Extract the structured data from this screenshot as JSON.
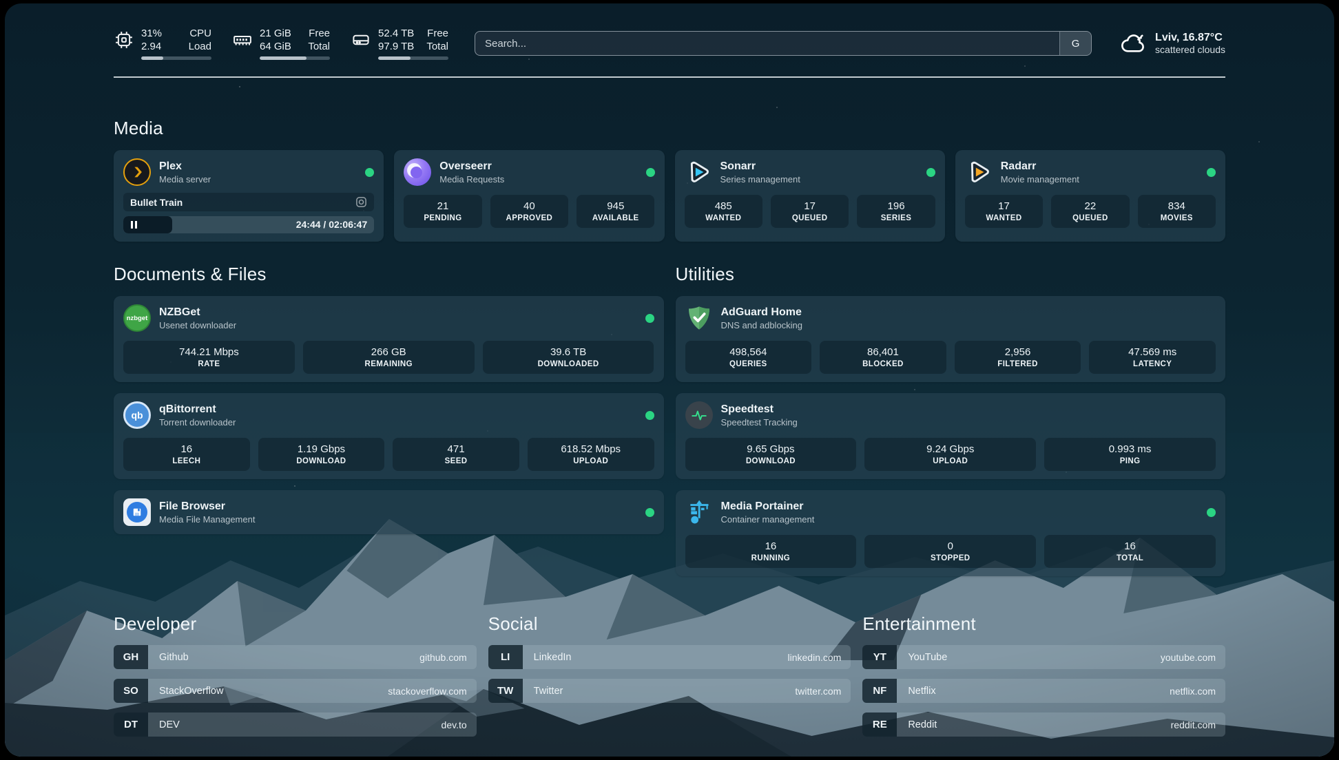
{
  "colors": {
    "status_online": "#2bd483",
    "plex_accent": "#e5a00d",
    "sonarr_accent": "#35c5f4",
    "radarr_accent": "#f5a623"
  },
  "header": {
    "stats": [
      {
        "kind": "cpu",
        "value_top": "31%",
        "value_bottom": "2.94",
        "label_top": "CPU",
        "label_bottom": "Load",
        "progress_pct": 31
      },
      {
        "kind": "memory",
        "value_top": "21 GiB",
        "value_bottom": "64 GiB",
        "label_top": "Free",
        "label_bottom": "Total",
        "progress_pct": 67
      },
      {
        "kind": "disk",
        "value_top": "52.4 TB",
        "value_bottom": "97.9 TB",
        "label_top": "Free",
        "label_bottom": "Total",
        "progress_pct": 46
      }
    ],
    "search_placeholder": "Search...",
    "search_engine": "G",
    "weather": {
      "location_temp": "Lviv, 16.87°C",
      "condition": "scattered clouds"
    }
  },
  "media": {
    "title": "Media",
    "plex": {
      "name": "Plex",
      "description": "Media server",
      "now_playing": "Bullet Train",
      "time_display": "24:44 / 02:06:47",
      "progress_pct": 19.5
    },
    "overseerr": {
      "name": "Overseerr",
      "description": "Media Requests",
      "stats": [
        {
          "value": "21",
          "label": "PENDING"
        },
        {
          "value": "40",
          "label": "APPROVED"
        },
        {
          "value": "945",
          "label": "AVAILABLE"
        }
      ]
    },
    "sonarr": {
      "name": "Sonarr",
      "description": "Series management",
      "stats": [
        {
          "value": "485",
          "label": "WANTED"
        },
        {
          "value": "17",
          "label": "QUEUED"
        },
        {
          "value": "196",
          "label": "SERIES"
        }
      ]
    },
    "radarr": {
      "name": "Radarr",
      "description": "Movie management",
      "stats": [
        {
          "value": "17",
          "label": "WANTED"
        },
        {
          "value": "22",
          "label": "QUEUED"
        },
        {
          "value": "834",
          "label": "MOVIES"
        }
      ]
    }
  },
  "documents": {
    "title": "Documents & Files",
    "nzbget": {
      "name": "NZBGet",
      "description": "Usenet downloader",
      "icon_text": "nzbget",
      "stats": [
        {
          "value": "744.21 Mbps",
          "label": "RATE"
        },
        {
          "value": "266 GB",
          "label": "REMAINING"
        },
        {
          "value": "39.6 TB",
          "label": "DOWNLOADED"
        }
      ]
    },
    "qbittorrent": {
      "name": "qBittorrent",
      "description": "Torrent downloader",
      "icon_text": "qb",
      "stats": [
        {
          "value": "16",
          "label": "LEECH"
        },
        {
          "value": "1.19 Gbps",
          "label": "DOWNLOAD"
        },
        {
          "value": "471",
          "label": "SEED"
        },
        {
          "value": "618.52 Mbps",
          "label": "UPLOAD"
        }
      ]
    },
    "filebrowser": {
      "name": "File Browser",
      "description": "Media File Management"
    }
  },
  "utilities": {
    "title": "Utilities",
    "adguard": {
      "name": "AdGuard Home",
      "description": "DNS and adblocking",
      "stats": [
        {
          "value": "498,564",
          "label": "QUERIES"
        },
        {
          "value": "86,401",
          "label": "BLOCKED"
        },
        {
          "value": "2,956",
          "label": "FILTERED"
        },
        {
          "value": "47.569 ms",
          "label": "LATENCY"
        }
      ]
    },
    "speedtest": {
      "name": "Speedtest",
      "description": "Speedtest Tracking",
      "stats": [
        {
          "value": "9.65 Gbps",
          "label": "DOWNLOAD"
        },
        {
          "value": "9.24 Gbps",
          "label": "UPLOAD"
        },
        {
          "value": "0.993 ms",
          "label": "PING"
        }
      ]
    },
    "portainer": {
      "name": "Media Portainer",
      "description": "Container management",
      "stats": [
        {
          "value": "16",
          "label": "RUNNING"
        },
        {
          "value": "0",
          "label": "STOPPED"
        },
        {
          "value": "16",
          "label": "TOTAL"
        }
      ]
    }
  },
  "bookmarks": {
    "developer": {
      "title": "Developer",
      "links": [
        {
          "abbr": "GH",
          "name": "Github",
          "url": "github.com"
        },
        {
          "abbr": "SO",
          "name": "StackOverflow",
          "url": "stackoverflow.com"
        },
        {
          "abbr": "DT",
          "name": "DEV",
          "url": "dev.to"
        }
      ]
    },
    "social": {
      "title": "Social",
      "links": [
        {
          "abbr": "LI",
          "name": "LinkedIn",
          "url": "linkedin.com"
        },
        {
          "abbr": "TW",
          "name": "Twitter",
          "url": "twitter.com"
        }
      ]
    },
    "entertainment": {
      "title": "Entertainment",
      "links": [
        {
          "abbr": "YT",
          "name": "YouTube",
          "url": "youtube.com"
        },
        {
          "abbr": "NF",
          "name": "Netflix",
          "url": "netflix.com"
        },
        {
          "abbr": "RE",
          "name": "Reddit",
          "url": "reddit.com"
        }
      ]
    }
  }
}
